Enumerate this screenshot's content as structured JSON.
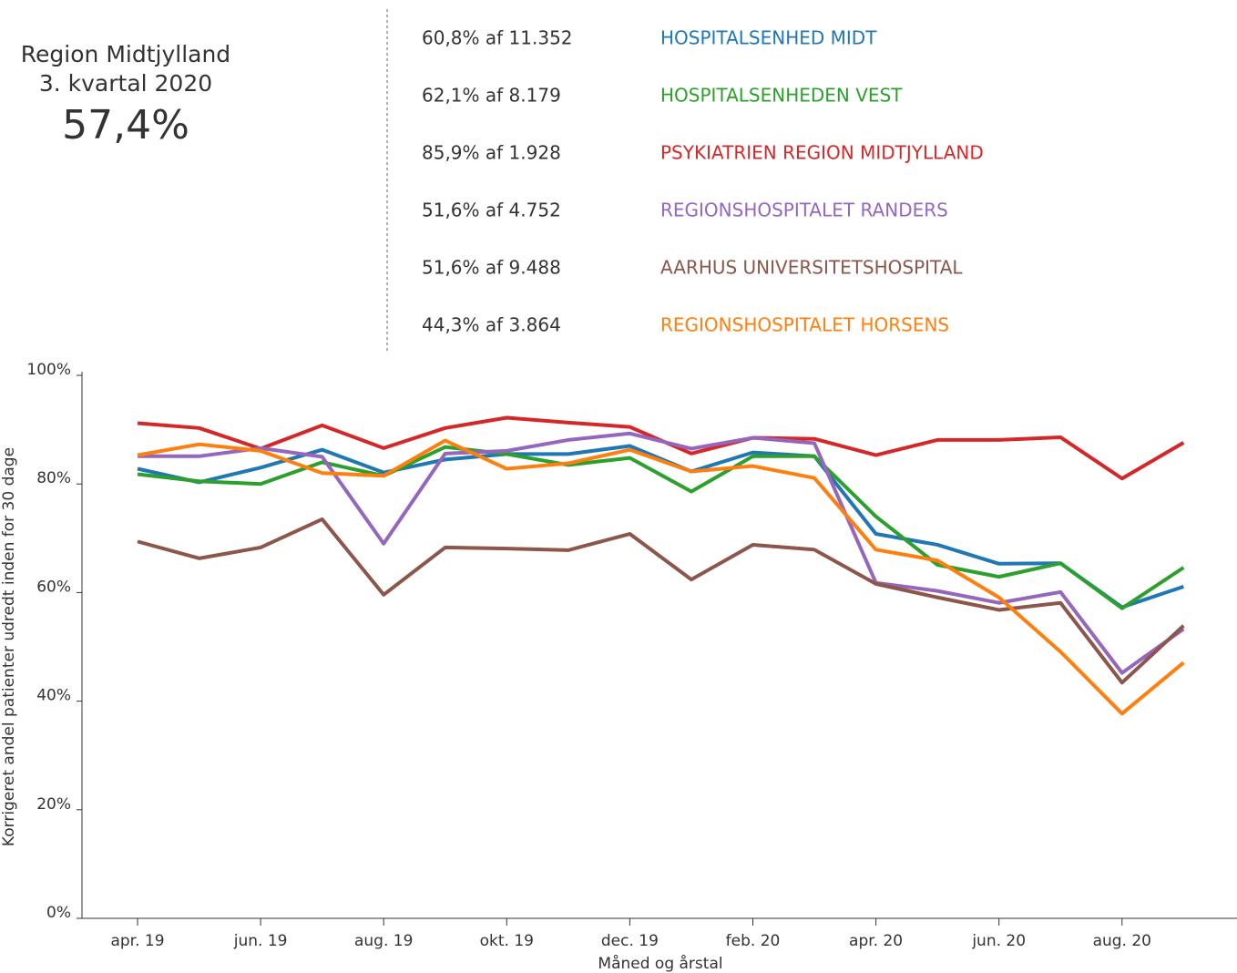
{
  "summary": {
    "region": "Region Midtjylland",
    "period": "3. kvartal 2020",
    "value": "57,4%"
  },
  "stats": [
    "60,8% af 11.352",
    "62,1% af 8.179",
    "85,9% af 1.928",
    "51,6% af 4.752",
    "51,6% af 9.488",
    "44,3% af 3.864"
  ],
  "chart_data": {
    "type": "line",
    "x_label": "Måned og årstal",
    "y_label": "Korrigeret andel patienter udredt inden for 30 dage",
    "categories": [
      "apr. 19",
      null,
      "jun. 19",
      null,
      "aug. 19",
      null,
      "okt. 19",
      null,
      "dec. 19",
      null,
      "feb. 20",
      null,
      "apr. 20",
      null,
      "jun. 20",
      null,
      "aug. 20",
      null
    ],
    "ylim": [
      0,
      100
    ],
    "yticks": [
      {
        "value": 0,
        "label": "0%"
      },
      {
        "value": 20,
        "label": "20%"
      },
      {
        "value": 40,
        "label": "40%"
      },
      {
        "value": 60,
        "label": "60%"
      },
      {
        "value": 80,
        "label": "80%"
      },
      {
        "value": 100,
        "label": "100%"
      }
    ],
    "series": [
      {
        "name": "HOSPITALSENHED MIDT",
        "color": "#1f77b4",
        "values": [
          82.8,
          80.3,
          83.0,
          86.3,
          82.1,
          84.5,
          85.5,
          85.5,
          87.0,
          82.3,
          85.8,
          85.1,
          70.8,
          68.8,
          65.3,
          65.4,
          57.3,
          61.1
        ]
      },
      {
        "name": "HOSPITALSENHEDEN VEST",
        "color": "#2ca02c",
        "values": [
          81.8,
          80.5,
          80.0,
          84.0,
          81.5,
          86.8,
          85.5,
          83.5,
          84.8,
          78.6,
          85.1,
          85.1,
          74.0,
          65.1,
          62.9,
          65.4,
          57.1,
          64.6
        ]
      },
      {
        "name": "PSYKIATRIEN REGION MIDTJYLLAND",
        "color": "#d62728",
        "values": [
          91.2,
          90.3,
          86.5,
          90.8,
          86.6,
          90.3,
          92.2,
          91.3,
          90.5,
          85.6,
          88.5,
          88.3,
          85.3,
          88.1,
          88.1,
          88.6,
          81.0,
          87.6
        ]
      },
      {
        "name": "REGIONSHOSPITALET RANDERS",
        "color": "#9467bd",
        "values": [
          85.1,
          85.1,
          86.6,
          85.0,
          69.0,
          85.6,
          86.1,
          88.1,
          89.3,
          86.5,
          88.5,
          87.5,
          61.8,
          60.3,
          58.1,
          60.1,
          45.2,
          53.3
        ]
      },
      {
        "name": "AARHUS UNIVERSITETSHOSPITAL",
        "color": "#8c564b",
        "values": [
          69.4,
          66.3,
          68.3,
          73.5,
          59.6,
          68.3,
          68.1,
          67.8,
          70.8,
          62.4,
          68.8,
          67.9,
          61.6,
          59.1,
          56.8,
          58.1,
          43.4,
          53.9
        ]
      },
      {
        "name": "REGIONSHOSPITALET HORSENS",
        "color": "#ff7f0e",
        "values": [
          85.3,
          87.3,
          86.1,
          82.0,
          81.5,
          88.0,
          82.8,
          83.8,
          86.3,
          82.3,
          83.3,
          81.1,
          67.9,
          65.9,
          59.1,
          49.1,
          37.7,
          47.1
        ]
      }
    ]
  }
}
